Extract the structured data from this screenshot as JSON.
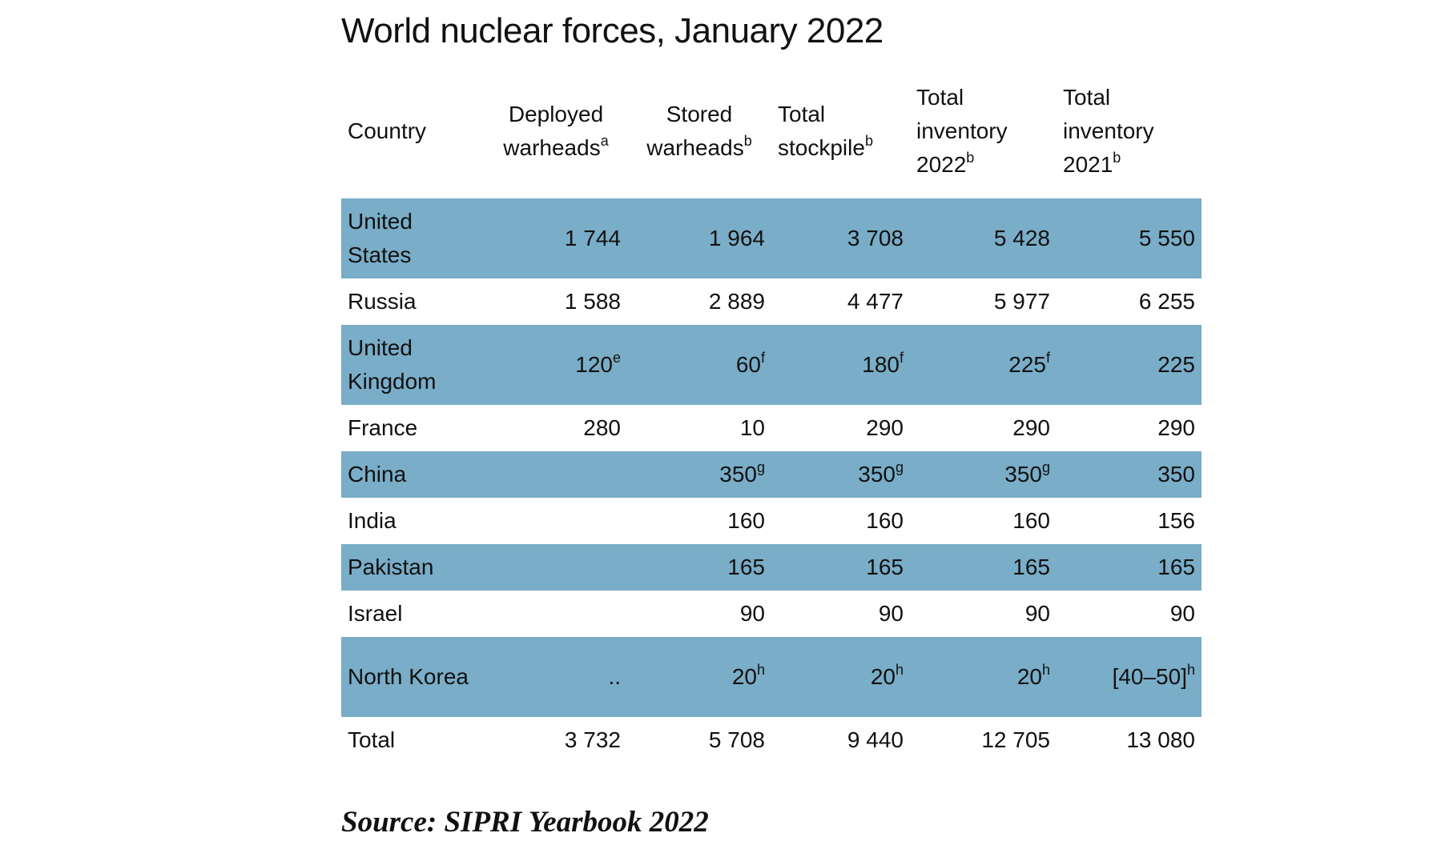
{
  "title": "World nuclear forces, January 2022",
  "source": "Source: SIPRI Yearbook 2022",
  "colors": {
    "row_shade": "#79adc8",
    "background": "#ffffff",
    "text": "#111111"
  },
  "chart_data": {
    "type": "table",
    "title": "World nuclear forces, January 2022",
    "columns": [
      {
        "label": "Country",
        "sup": ""
      },
      {
        "label": "Deployed warheads",
        "sup": "a"
      },
      {
        "label": "Stored warheads",
        "sup": "b"
      },
      {
        "label": "Total stockpile",
        "sup": "b"
      },
      {
        "label": "Total inventory 2022",
        "sup": "b"
      },
      {
        "label": "Total inventory 2021",
        "sup": "b"
      }
    ],
    "rows": [
      {
        "country": "United States",
        "shaded": true,
        "cells": [
          {
            "v": "1 744",
            "sup": ""
          },
          {
            "v": "1 964",
            "sup": ""
          },
          {
            "v": "3 708",
            "sup": ""
          },
          {
            "v": "5 428",
            "sup": ""
          },
          {
            "v": "5 550",
            "sup": ""
          }
        ]
      },
      {
        "country": "Russia",
        "shaded": false,
        "cells": [
          {
            "v": "1 588",
            "sup": ""
          },
          {
            "v": "2 889",
            "sup": ""
          },
          {
            "v": "4 477",
            "sup": ""
          },
          {
            "v": "5 977",
            "sup": ""
          },
          {
            "v": "6 255",
            "sup": ""
          }
        ]
      },
      {
        "country": "United Kingdom",
        "shaded": true,
        "cells": [
          {
            "v": "120",
            "sup": "e"
          },
          {
            "v": "60",
            "sup": "f"
          },
          {
            "v": "180",
            "sup": "f"
          },
          {
            "v": "225",
            "sup": "f"
          },
          {
            "v": "225",
            "sup": ""
          }
        ]
      },
      {
        "country": "France",
        "shaded": false,
        "cells": [
          {
            "v": "280",
            "sup": ""
          },
          {
            "v": "10",
            "sup": ""
          },
          {
            "v": "290",
            "sup": ""
          },
          {
            "v": "290",
            "sup": ""
          },
          {
            "v": "290",
            "sup": ""
          }
        ]
      },
      {
        "country": "China",
        "shaded": true,
        "cells": [
          {
            "v": "",
            "sup": ""
          },
          {
            "v": "350",
            "sup": "g"
          },
          {
            "v": "350",
            "sup": "g"
          },
          {
            "v": "350",
            "sup": "g"
          },
          {
            "v": "350",
            "sup": ""
          }
        ]
      },
      {
        "country": "India",
        "shaded": false,
        "cells": [
          {
            "v": "",
            "sup": ""
          },
          {
            "v": "160",
            "sup": ""
          },
          {
            "v": "160",
            "sup": ""
          },
          {
            "v": "160",
            "sup": ""
          },
          {
            "v": "156",
            "sup": ""
          }
        ]
      },
      {
        "country": "Pakistan",
        "shaded": true,
        "cells": [
          {
            "v": "",
            "sup": ""
          },
          {
            "v": "165",
            "sup": ""
          },
          {
            "v": "165",
            "sup": ""
          },
          {
            "v": "165",
            "sup": ""
          },
          {
            "v": "165",
            "sup": ""
          }
        ]
      },
      {
        "country": "Israel",
        "shaded": false,
        "cells": [
          {
            "v": "",
            "sup": ""
          },
          {
            "v": "90",
            "sup": ""
          },
          {
            "v": "90",
            "sup": ""
          },
          {
            "v": "90",
            "sup": ""
          },
          {
            "v": "90",
            "sup": ""
          }
        ]
      },
      {
        "country": "North Korea",
        "shaded": true,
        "cells": [
          {
            "v": "..",
            "sup": ""
          },
          {
            "v": "20",
            "sup": "h"
          },
          {
            "v": "20",
            "sup": "h"
          },
          {
            "v": "20",
            "sup": "h"
          },
          {
            "v": "[40–50]",
            "sup": "h"
          }
        ]
      },
      {
        "country": "Total",
        "shaded": false,
        "cells": [
          {
            "v": "3 732",
            "sup": ""
          },
          {
            "v": "5 708",
            "sup": ""
          },
          {
            "v": "9 440",
            "sup": ""
          },
          {
            "v": "12 705",
            "sup": ""
          },
          {
            "v": "13 080",
            "sup": ""
          }
        ]
      }
    ]
  }
}
